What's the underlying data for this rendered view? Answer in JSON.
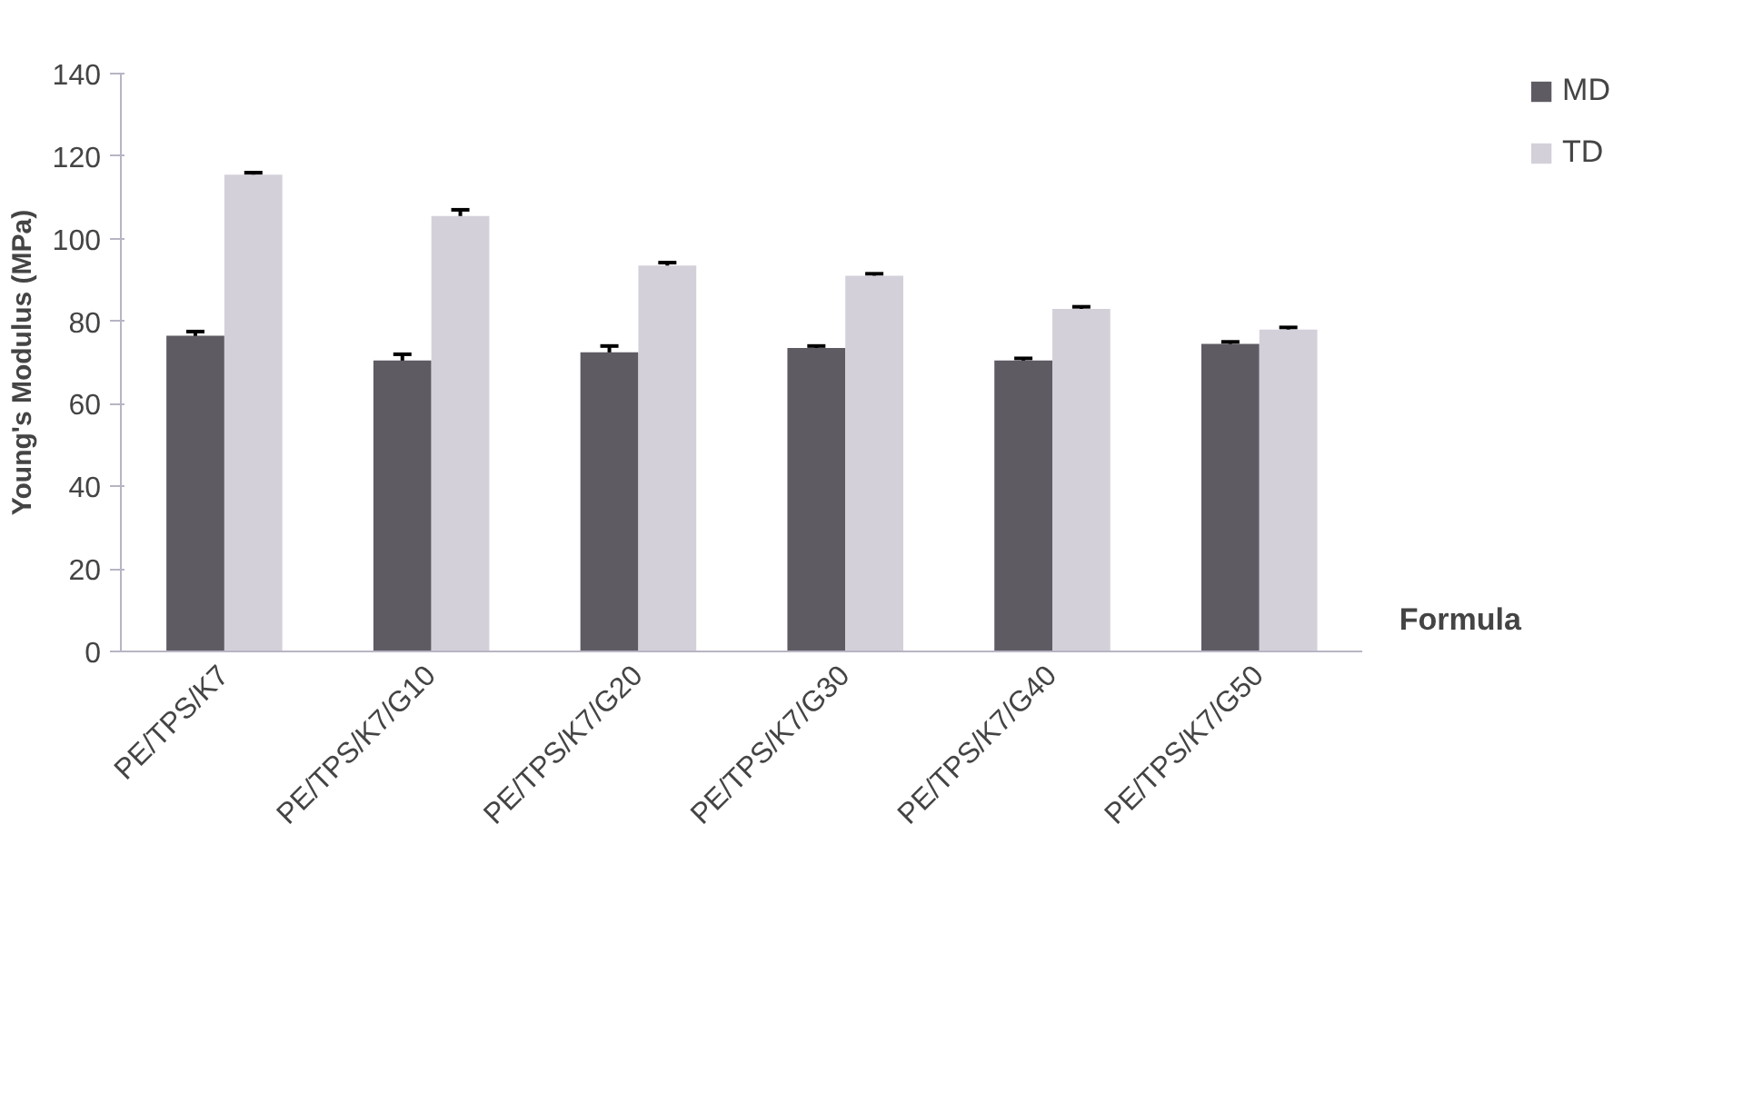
{
  "chart_data": {
    "type": "bar",
    "ylabel": "Young's Modulus (MPa)",
    "xlabel": "Formula",
    "categories": [
      "PE/TPS/K7",
      "PE/TPS/K7/G10",
      "PE/TPS/K7/G20",
      "PE/TPS/K7/G30",
      "PE/TPS/K7/G40",
      "PE/TPS/K7/G50"
    ],
    "series": [
      {
        "name": "MD",
        "color": "#5f5b63",
        "values": [
          76.5,
          70.5,
          72.5,
          73.5,
          70.5,
          74.5
        ],
        "errors": [
          1,
          1.5,
          1.5,
          0.5,
          0.5,
          0.5
        ]
      },
      {
        "name": "TD",
        "color": "#d4d0da",
        "values": [
          115.5,
          105.5,
          93.5,
          91,
          83,
          78
        ],
        "errors": [
          0.5,
          1.5,
          0.7,
          0.5,
          0.5,
          0.5
        ]
      }
    ],
    "ylim": [
      0,
      140
    ],
    "yticks": [
      0,
      20,
      40,
      60,
      80,
      100,
      120,
      140
    ],
    "grid": false,
    "legend": "right"
  }
}
